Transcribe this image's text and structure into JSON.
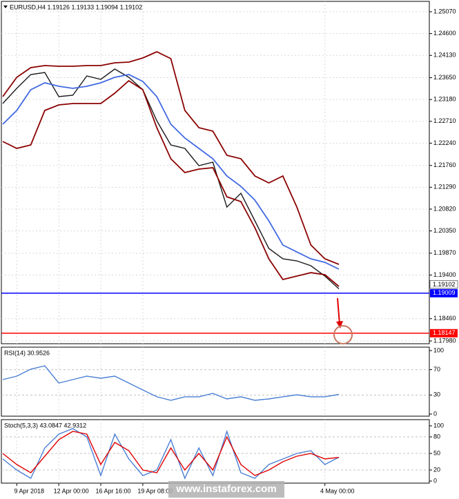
{
  "chart_data": [
    {
      "type": "line",
      "title": "EURUSD,H4  1.19126 1.19133 1.19094 1.19102",
      "categories": [
        null,
        "9 Apr 2018",
        null,
        null,
        "12 Apr 00:00",
        null,
        null,
        "16 Apr 16:00",
        null,
        null,
        "19 Apr 08:00",
        null,
        null,
        null,
        null,
        null,
        null,
        null,
        null,
        null,
        null,
        null,
        null,
        "4 May 00:00",
        null
      ],
      "series": [
        {
          "color": "#1a1a1a",
          "values": [
            1.23093,
            1.2342,
            1.23717,
            1.23762,
            1.23242,
            1.23271,
            1.23688,
            1.23613,
            1.23836,
            1.23658,
            1.2339,
            1.22721,
            1.22201,
            1.22127,
            1.21755,
            1.2183,
            1.20863,
            1.21161,
            1.20566,
            1.19972,
            1.19749,
            1.19704,
            1.196,
            1.19377,
            1.19102
          ]
        },
        {
          "color": "#8b0000",
          "values": [
            1.23242,
            1.23658,
            1.23866,
            1.23911,
            1.23896,
            1.23896,
            1.23911,
            1.23911,
            1.2397,
            1.23985,
            1.24074,
            1.24208,
            1.24059,
            1.22944,
            1.22573,
            1.22499,
            1.21978,
            1.21904,
            1.21532,
            1.21384,
            1.21532,
            1.20863,
            1.20046,
            1.19749,
            1.1963
          ]
        },
        {
          "color": "#8b0000",
          "values": [
            1.22276,
            1.22127,
            1.22201,
            1.22944,
            1.23063,
            1.23093,
            1.23093,
            1.23093,
            1.23316,
            1.23584,
            1.2339,
            1.22573,
            1.21904,
            1.21607,
            1.21681,
            1.21711,
            1.21086,
            1.20982,
            1.20418,
            1.19749,
            1.19303,
            1.19377,
            1.19451,
            1.19407,
            1.19154
          ]
        },
        {
          "color": "#4169e1",
          "values": [
            1.22647,
            1.22944,
            1.2339,
            1.23539,
            1.23465,
            1.2342,
            1.23465,
            1.23539,
            1.23658,
            1.23717,
            1.23569,
            1.23242,
            1.22647,
            1.2235,
            1.22127,
            1.21904,
            1.21532,
            1.21309,
            1.21012,
            1.20566,
            1.20046,
            1.19897,
            1.19749,
            1.19674,
            1.19526
          ]
        }
      ],
      "ylim": [
        1.17921,
        1.25293
      ],
      "yticks": [
        {
          "value": 1.2507,
          "label": "1.25070"
        },
        {
          "value": 1.246,
          "label": "1.24600"
        },
        {
          "value": 1.2413,
          "label": "1.24130"
        },
        {
          "value": 1.2365,
          "label": "1.23650"
        },
        {
          "value": 1.2318,
          "label": "1.23180"
        },
        {
          "value": 1.2271,
          "label": "1.22710"
        },
        {
          "value": 1.2224,
          "label": "1.22240"
        },
        {
          "value": 1.2176,
          "label": "1.21760"
        },
        {
          "value": 1.2129,
          "label": "1.21290"
        },
        {
          "value": 1.2082,
          "label": "1.20820"
        },
        {
          "value": 1.2035,
          "label": "1.20350"
        },
        {
          "value": 1.1987,
          "label": "1.19870"
        },
        {
          "value": 1.194,
          "label": "1.19400"
        },
        {
          "value": 1.1846,
          "label": "1.18460"
        },
        {
          "value": 1.1798,
          "label": "1.17980"
        }
      ],
      "last_price": 1.19102,
      "hlines": [
        {
          "value": 1.19009,
          "color": "#0000ff"
        },
        {
          "value": 1.18147,
          "color": "#ff0000"
        }
      ],
      "grid": true
    },
    {
      "type": "line",
      "title": "RSI(14) 30.9526",
      "series": [
        {
          "color": "#4a7fd4",
          "values": [
            54.3,
            59.8,
            70.7,
            76.1,
            48.9,
            54.3,
            59.8,
            56.5,
            59.8,
            48.9,
            38,
            27.2,
            21.7,
            27.2,
            27.2,
            32.6,
            23.9,
            27.2,
            21.7,
            23.9,
            27.2,
            30.4,
            27.2,
            27.2,
            30.9526
          ]
        }
      ],
      "ylim": [
        -3.3,
        105.4
      ],
      "yticks": [
        100,
        70,
        30,
        0
      ]
    },
    {
      "type": "line",
      "title": "Stoch(5,3,3) 43.0847 42.9312",
      "series": [
        {
          "color": "#4a7fd4",
          "values": [
            40,
            20,
            5,
            60,
            85,
            95,
            80,
            10,
            85,
            40,
            10,
            20,
            75,
            5,
            60,
            10,
            90,
            15,
            5,
            30,
            40,
            50,
            55,
            30,
            43.0847
          ]
        },
        {
          "color": "#e00000",
          "values": [
            50,
            30,
            15,
            45,
            75,
            90,
            85,
            30,
            70,
            55,
            20,
            15,
            60,
            20,
            50,
            20,
            80,
            30,
            10,
            20,
            35,
            45,
            50,
            40,
            42.9312
          ]
        }
      ],
      "ylim": [
        -3.75,
        111.25
      ],
      "yticks": [
        100,
        80,
        50,
        20,
        0
      ]
    }
  ],
  "watermark": "www.instaforex.com"
}
